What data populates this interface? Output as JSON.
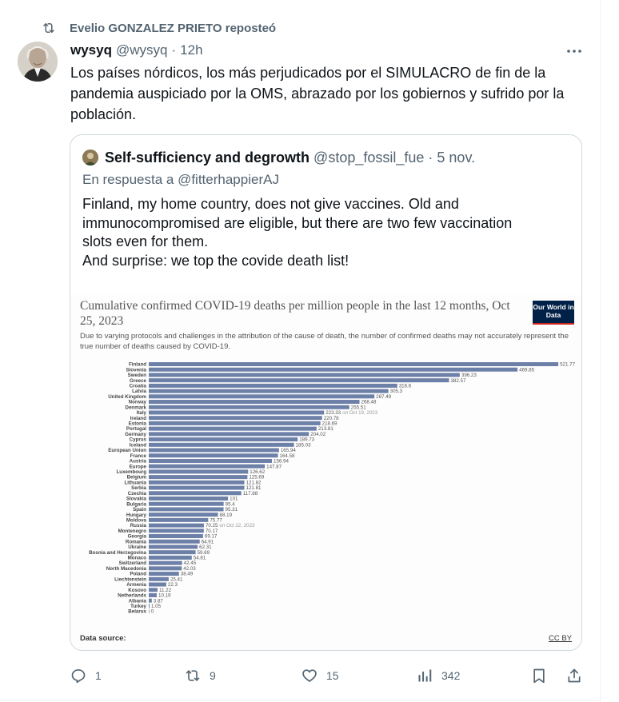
{
  "repost": {
    "label": "Evelio GONZALEZ PRIETO reposteó",
    "icon": "repost-icon"
  },
  "tweet": {
    "name": "wysyq",
    "handle": "@wysyq",
    "separator": "·",
    "time": "12h",
    "text": "Los países nórdicos, los más perjudicados por el SIMULACRO de fin de la pandemia auspiciado por la OMS, abrazado por los gobiernos y sufrido por la población."
  },
  "quote": {
    "name": "Self-sufficiency and degrowth",
    "handle": "@stop_fossil_fue",
    "separator": "·",
    "time": "5 nov.",
    "reply_to": "En respuesta a @fitterhappierAJ",
    "lines": [
      "Finland, my home country, does not give vaccines. Old and",
      "immunocompromised are eligible, but there are two few vaccination",
      "slots even for them.",
      "And surprise: we top the covide death list!"
    ]
  },
  "chart_data": {
    "type": "bar",
    "orientation": "horizontal",
    "title": "Cumulative confirmed COVID-19 deaths per million people in the last 12 months, Oct 25, 2023",
    "subtitle": "Due to varying protocols and challenges in the attribution of the cause of death, the number of confirmed deaths may not accurately represent the true number of deaths caused by COVID-19.",
    "logo_text": "Our World in Data",
    "source_label": "Data source:",
    "license": "CC BY",
    "bar_color": "#6d80a8",
    "xlim": [
      0,
      540
    ],
    "categories": [
      "Finland",
      "Slovenia",
      "Sweden",
      "Greece",
      "Croatia",
      "Latvia",
      "United Kingdom",
      "Norway",
      "Denmark",
      "Italy",
      "Ireland",
      "Estonia",
      "Portugal",
      "Germany",
      "Cyprus",
      "Iceland",
      "European Union",
      "France",
      "Austria",
      "Europe",
      "Luxembourg",
      "Belgium",
      "Lithuania",
      "Serbia",
      "Czechia",
      "Slovakia",
      "Bulgaria",
      "Spain",
      "Hungary",
      "Moldova",
      "Russia",
      "Montenegro",
      "Georgia",
      "Romania",
      "Ukraine",
      "Bosnia and Herzegovina",
      "Monaco",
      "Switzerland",
      "North Macedonia",
      "Poland",
      "Liechtenstein",
      "Armenia",
      "Kosovo",
      "Netherlands",
      "Albania",
      "Turkey",
      "Belarus"
    ],
    "values": [
      521.77,
      469.85,
      396.23,
      382.57,
      316.6,
      305.3,
      287.49,
      268.48,
      255.51,
      223.33,
      220.78,
      218.69,
      213.81,
      204.02,
      189.73,
      185.03,
      165.94,
      164.58,
      156.94,
      147.87,
      126.62,
      125.69,
      121.82,
      121.81,
      117.88,
      101,
      95.4,
      95.31,
      88.19,
      75.77,
      70.25,
      70.17,
      69.17,
      64.91,
      62.31,
      59.69,
      54.81,
      42.45,
      42.03,
      38.49,
      25.41,
      22.3,
      11.22,
      10.19,
      3.87,
      1.05,
      0
    ],
    "value_labels": [
      "521.77",
      "469.85",
      "396.23",
      "382.57",
      "316.6",
      "305.3",
      "287.49",
      "268.48",
      "255.51",
      "223.33",
      "220.78",
      "218.69",
      "213.81",
      "204.02",
      "189.73",
      "185.03",
      "165.94",
      "164.58",
      "156.94",
      "147.87",
      "126.62",
      "125.69",
      "121.82",
      "121.81",
      "117.88",
      "101",
      "95.4",
      "95.31",
      "88.19",
      "75.77",
      "70.25",
      "70.17",
      "69.17",
      "64.91",
      "62.31",
      "59.69",
      "54.81",
      "42.45",
      "42.03",
      "38.49",
      "25.41",
      "22.3",
      "11.22",
      "10.19",
      "3.87",
      "1.05",
      "0"
    ],
    "notes": {
      "Italy": "on Oct 19, 2023",
      "Russia": "on Oct 22, 2023"
    }
  },
  "actions": {
    "reply": {
      "icon": "reply-icon",
      "count": "1"
    },
    "repost": {
      "icon": "repost-icon",
      "count": "9"
    },
    "like": {
      "icon": "heart-icon",
      "count": "15"
    },
    "views": {
      "icon": "views-icon",
      "count": "342"
    },
    "bookmark": {
      "icon": "bookmark-icon"
    },
    "share": {
      "icon": "share-icon"
    }
  },
  "colors": {
    "text": "#0f1419",
    "secondary": "#536471",
    "border": "#cfd9de",
    "owid_navy": "#002147",
    "owid_red": "#ce261e"
  }
}
